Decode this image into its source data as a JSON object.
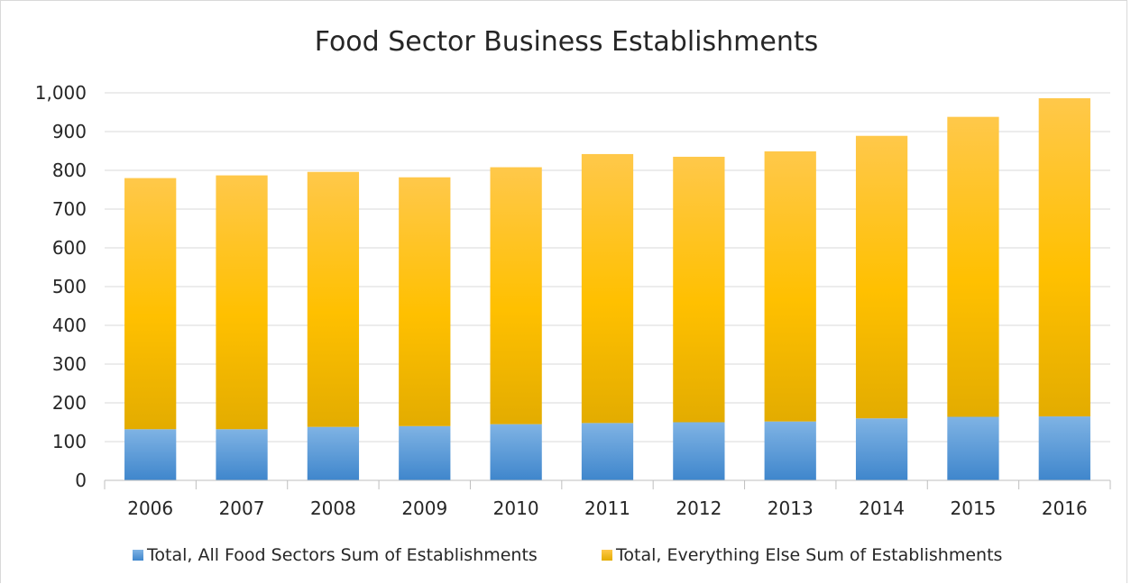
{
  "chart_data": {
    "type": "bar",
    "stacked": true,
    "title": "Food Sector Business Establishments",
    "xlabel": "",
    "ylabel": "",
    "categories": [
      "2006",
      "2007",
      "2008",
      "2009",
      "2010",
      "2011",
      "2012",
      "2013",
      "2014",
      "2015",
      "2016"
    ],
    "series": [
      {
        "name": "Total, All Food Sectors Sum of Establishments",
        "color": "#5b9bd5",
        "values": [
          132,
          132,
          138,
          140,
          145,
          148,
          150,
          152,
          160,
          164,
          165
        ]
      },
      {
        "name": "Total, Everything Else Sum of Establishments",
        "color": "#ffc000",
        "values": [
          648,
          655,
          658,
          642,
          663,
          694,
          685,
          697,
          729,
          774,
          821
        ]
      }
    ],
    "ylim": [
      0,
      1000
    ],
    "yticks": [
      "0",
      "100",
      "200",
      "300",
      "400",
      "500",
      "600",
      "700",
      "800",
      "900",
      "1,000"
    ],
    "grid": true,
    "legend_position": "bottom"
  }
}
